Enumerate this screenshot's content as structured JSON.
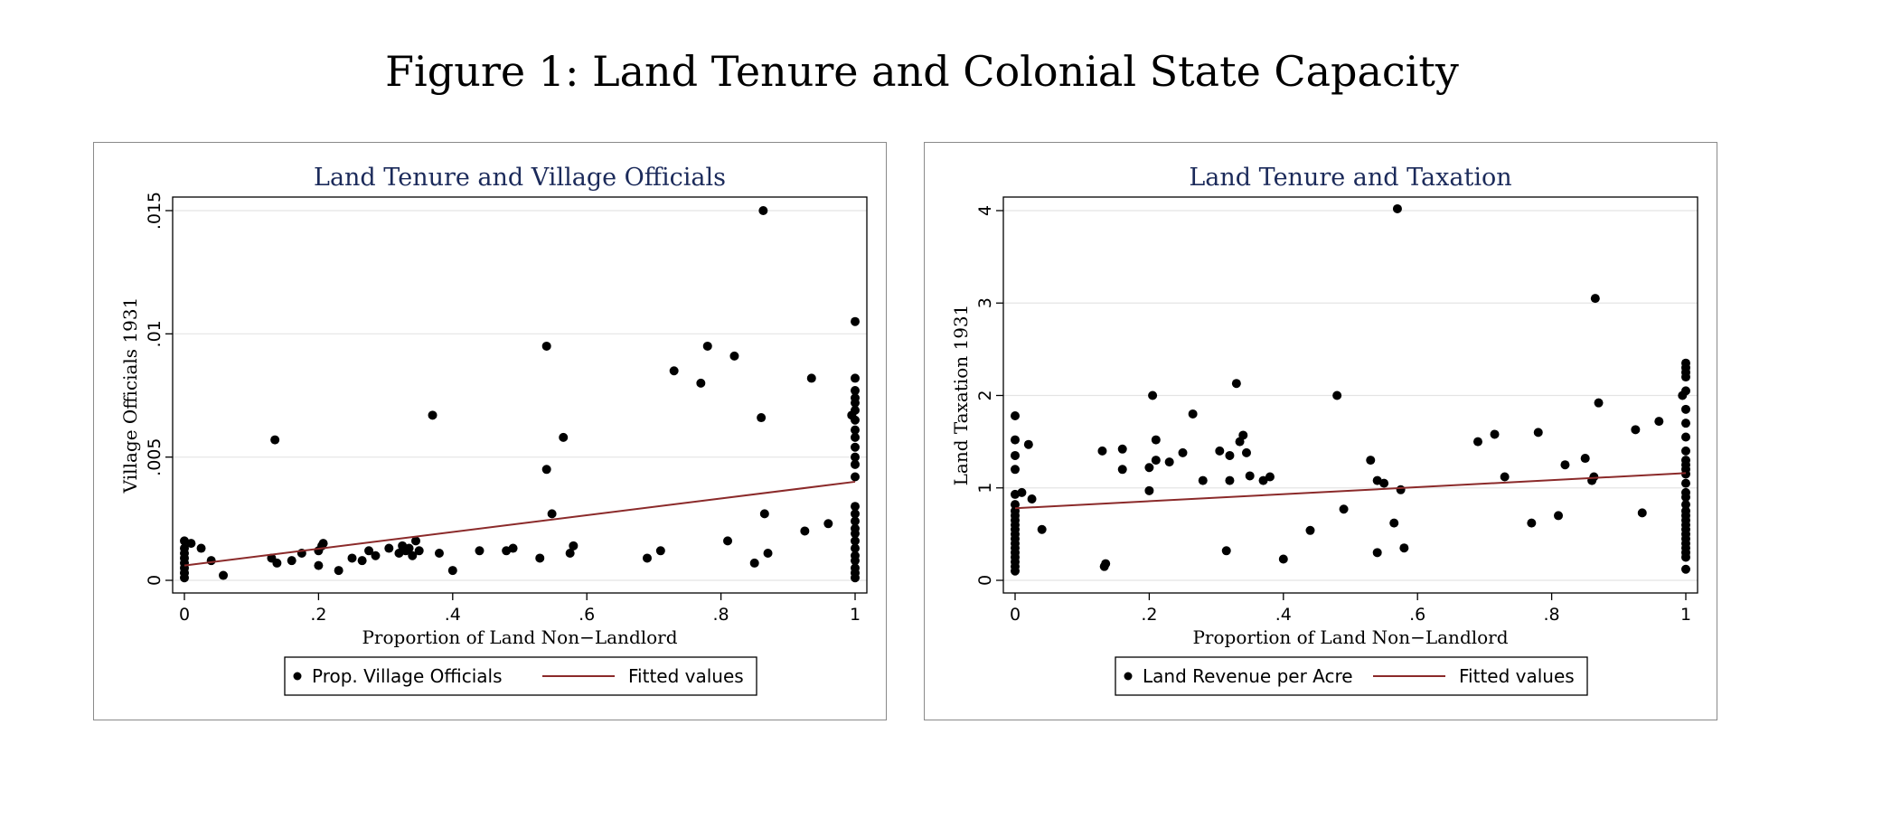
{
  "figure": {
    "title": "Figure 1: Land Tenure and Colonial State Capacity"
  },
  "colors": {
    "title": "#1b2a5a",
    "fit": "#8b2a2a",
    "points": "#000000",
    "grid": "#e4e4e4"
  },
  "chart_data": [
    {
      "type": "scatter",
      "title": "Land Tenure and Village Officials",
      "xlabel": "Proportion of Land Non−Landlord",
      "ylabel": "Village Officials 1931",
      "xlim": [
        0,
        1
      ],
      "ylim": [
        0,
        0.015
      ],
      "xticks": [
        0,
        0.2,
        0.4,
        0.6,
        0.8,
        1
      ],
      "xtick_labels": [
        "0",
        ".2",
        ".4",
        ".6",
        ".8",
        "1"
      ],
      "yticks": [
        0,
        0.005,
        0.01,
        0.015
      ],
      "ytick_labels": [
        "0",
        ".005",
        ".01",
        ".015"
      ],
      "grid": true,
      "legend_position": "bottom",
      "series": [
        {
          "name": "Prop. Village Officials",
          "kind": "scatter",
          "points": [
            [
              0,
              0.0016
            ],
            [
              0,
              0.0013
            ],
            [
              0,
              0.0011
            ],
            [
              0,
              0.0009
            ],
            [
              0,
              0.0007
            ],
            [
              0,
              0.0005
            ],
            [
              0,
              0.0003
            ],
            [
              0,
              0.0001
            ],
            [
              0.01,
              0.0015
            ],
            [
              0.025,
              0.0013
            ],
            [
              0.04,
              0.0008
            ],
            [
              0.058,
              0.0002
            ],
            [
              0.13,
              0.0009
            ],
            [
              0.135,
              0.0057
            ],
            [
              0.138,
              0.0007
            ],
            [
              0.16,
              0.0008
            ],
            [
              0.175,
              0.0011
            ],
            [
              0.2,
              0.0012
            ],
            [
              0.2,
              0.0006
            ],
            [
              0.205,
              0.0014
            ],
            [
              0.207,
              0.0015
            ],
            [
              0.23,
              0.0004
            ],
            [
              0.25,
              0.0009
            ],
            [
              0.265,
              0.0008
            ],
            [
              0.275,
              0.0012
            ],
            [
              0.285,
              0.001
            ],
            [
              0.305,
              0.0013
            ],
            [
              0.32,
              0.0011
            ],
            [
              0.325,
              0.0014
            ],
            [
              0.33,
              0.0012
            ],
            [
              0.335,
              0.0013
            ],
            [
              0.34,
              0.001
            ],
            [
              0.345,
              0.0016
            ],
            [
              0.35,
              0.0012
            ],
            [
              0.37,
              0.0067
            ],
            [
              0.38,
              0.0011
            ],
            [
              0.4,
              0.0004
            ],
            [
              0.44,
              0.0012
            ],
            [
              0.48,
              0.0012
            ],
            [
              0.49,
              0.0013
            ],
            [
              0.53,
              0.0009
            ],
            [
              0.54,
              0.0095
            ],
            [
              0.54,
              0.0045
            ],
            [
              0.548,
              0.0027
            ],
            [
              0.565,
              0.0058
            ],
            [
              0.575,
              0.0011
            ],
            [
              0.58,
              0.0014
            ],
            [
              0.69,
              0.0009
            ],
            [
              0.71,
              0.0012
            ],
            [
              0.73,
              0.0085
            ],
            [
              0.77,
              0.008
            ],
            [
              0.78,
              0.0095
            ],
            [
              0.81,
              0.0016
            ],
            [
              0.82,
              0.0091
            ],
            [
              0.85,
              0.0007
            ],
            [
              0.86,
              0.0066
            ],
            [
              0.863,
              0.015
            ],
            [
              0.865,
              0.0027
            ],
            [
              0.87,
              0.0011
            ],
            [
              0.925,
              0.002
            ],
            [
              0.935,
              0.0082
            ],
            [
              0.96,
              0.0023
            ],
            [
              0.995,
              0.0067
            ],
            [
              1,
              0.0105
            ],
            [
              1,
              0.0082
            ],
            [
              1,
              0.0077
            ],
            [
              1,
              0.0074
            ],
            [
              1,
              0.0072
            ],
            [
              1,
              0.0069
            ],
            [
              1,
              0.0065
            ],
            [
              1,
              0.0061
            ],
            [
              1,
              0.0058
            ],
            [
              1,
              0.0054
            ],
            [
              1,
              0.005
            ],
            [
              1,
              0.0047
            ],
            [
              1,
              0.0042
            ],
            [
              1,
              0.003
            ],
            [
              1,
              0.0027
            ],
            [
              1,
              0.0024
            ],
            [
              1,
              0.0021
            ],
            [
              1,
              0.0019
            ],
            [
              1,
              0.0016
            ],
            [
              1,
              0.0013
            ],
            [
              1,
              0.001
            ],
            [
              1,
              0.0008
            ],
            [
              1,
              0.0005
            ],
            [
              1,
              0.0003
            ],
            [
              1,
              0.0001
            ]
          ]
        },
        {
          "name": "Fitted values",
          "kind": "line",
          "x": [
            0,
            1
          ],
          "y": [
            0.0006,
            0.004
          ]
        }
      ]
    },
    {
      "type": "scatter",
      "title": "Land Tenure and Taxation",
      "xlabel": "Proportion of Land Non−Landlord",
      "ylabel": "Land Taxation 1931",
      "xlim": [
        0,
        1
      ],
      "ylim": [
        0,
        4
      ],
      "xticks": [
        0,
        0.2,
        0.4,
        0.6,
        0.8,
        1
      ],
      "xtick_labels": [
        "0",
        ".2",
        ".4",
        ".6",
        ".8",
        "1"
      ],
      "yticks": [
        0,
        1,
        2,
        3,
        4
      ],
      "ytick_labels": [
        "0",
        "1",
        "2",
        "3",
        "4"
      ],
      "grid": true,
      "legend_position": "bottom",
      "series": [
        {
          "name": "Land Revenue per Acre",
          "kind": "scatter",
          "points": [
            [
              0,
              1.78
            ],
            [
              0,
              1.52
            ],
            [
              0,
              1.35
            ],
            [
              0,
              1.2
            ],
            [
              0,
              0.93
            ],
            [
              0,
              0.82
            ],
            [
              0,
              0.75
            ],
            [
              0,
              0.7
            ],
            [
              0,
              0.65
            ],
            [
              0,
              0.6
            ],
            [
              0,
              0.55
            ],
            [
              0,
              0.5
            ],
            [
              0,
              0.45
            ],
            [
              0,
              0.4
            ],
            [
              0,
              0.35
            ],
            [
              0,
              0.3
            ],
            [
              0,
              0.25
            ],
            [
              0,
              0.2
            ],
            [
              0,
              0.15
            ],
            [
              0,
              0.1
            ],
            [
              0.01,
              0.95
            ],
            [
              0.02,
              1.47
            ],
            [
              0.025,
              0.88
            ],
            [
              0.04,
              0.55
            ],
            [
              0.13,
              1.4
            ],
            [
              0.133,
              0.15
            ],
            [
              0.135,
              0.18
            ],
            [
              0.16,
              1.42
            ],
            [
              0.16,
              1.2
            ],
            [
              0.2,
              1.22
            ],
            [
              0.2,
              0.97
            ],
            [
              0.205,
              2.0
            ],
            [
              0.21,
              1.52
            ],
            [
              0.21,
              1.3
            ],
            [
              0.23,
              1.28
            ],
            [
              0.25,
              1.38
            ],
            [
              0.265,
              1.8
            ],
            [
              0.28,
              1.08
            ],
            [
              0.305,
              1.4
            ],
            [
              0.315,
              0.32
            ],
            [
              0.32,
              1.08
            ],
            [
              0.32,
              1.35
            ],
            [
              0.33,
              2.13
            ],
            [
              0.335,
              1.5
            ],
            [
              0.34,
              1.57
            ],
            [
              0.345,
              1.38
            ],
            [
              0.35,
              1.13
            ],
            [
              0.37,
              1.08
            ],
            [
              0.38,
              1.12
            ],
            [
              0.4,
              0.23
            ],
            [
              0.44,
              0.54
            ],
            [
              0.48,
              2.0
            ],
            [
              0.49,
              0.77
            ],
            [
              0.53,
              1.3
            ],
            [
              0.54,
              1.08
            ],
            [
              0.54,
              0.3
            ],
            [
              0.55,
              1.05
            ],
            [
              0.565,
              0.62
            ],
            [
              0.57,
              4.02
            ],
            [
              0.575,
              0.98
            ],
            [
              0.58,
              0.35
            ],
            [
              0.69,
              1.5
            ],
            [
              0.715,
              1.58
            ],
            [
              0.73,
              1.12
            ],
            [
              0.77,
              0.62
            ],
            [
              0.78,
              1.6
            ],
            [
              0.81,
              0.7
            ],
            [
              0.82,
              1.25
            ],
            [
              0.85,
              1.32
            ],
            [
              0.86,
              1.08
            ],
            [
              0.863,
              1.12
            ],
            [
              0.865,
              3.05
            ],
            [
              0.87,
              1.92
            ],
            [
              0.925,
              1.63
            ],
            [
              0.935,
              0.73
            ],
            [
              0.96,
              1.72
            ],
            [
              0.995,
              2.0
            ],
            [
              1,
              2.35
            ],
            [
              1,
              2.3
            ],
            [
              1,
              2.25
            ],
            [
              1,
              2.2
            ],
            [
              1,
              2.05
            ],
            [
              1,
              1.85
            ],
            [
              1,
              1.7
            ],
            [
              1,
              1.55
            ],
            [
              1,
              1.4
            ],
            [
              1,
              1.3
            ],
            [
              1,
              1.25
            ],
            [
              1,
              1.2
            ],
            [
              1,
              1.15
            ],
            [
              1,
              1.05
            ],
            [
              1,
              0.95
            ],
            [
              1,
              0.9
            ],
            [
              1,
              0.82
            ],
            [
              1,
              0.75
            ],
            [
              1,
              0.7
            ],
            [
              1,
              0.65
            ],
            [
              1,
              0.6
            ],
            [
              1,
              0.55
            ],
            [
              1,
              0.5
            ],
            [
              1,
              0.45
            ],
            [
              1,
              0.4
            ],
            [
              1,
              0.35
            ],
            [
              1,
              0.3
            ],
            [
              1,
              0.25
            ],
            [
              1,
              0.12
            ]
          ]
        },
        {
          "name": "Fitted values",
          "kind": "line",
          "x": [
            0,
            1
          ],
          "y": [
            0.78,
            1.16
          ]
        }
      ]
    }
  ]
}
